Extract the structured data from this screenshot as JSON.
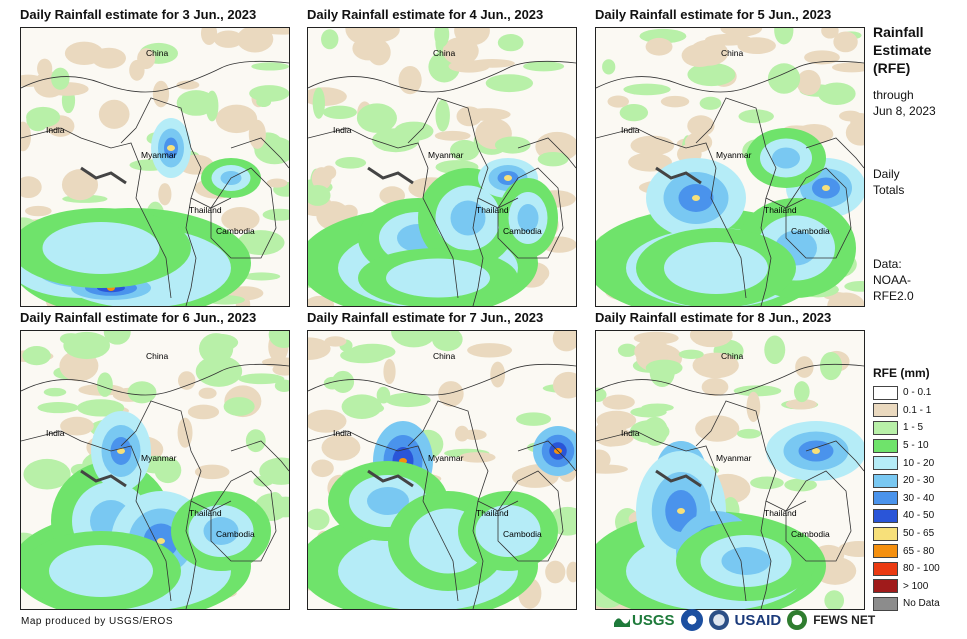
{
  "side": {
    "title_line1": "Rainfall",
    "title_line2": "Estimate",
    "title_line3": "(RFE)",
    "through": "through",
    "date": "Jun 8, 2023",
    "daily1": "Daily",
    "daily2": "Totals",
    "data1": "Data:",
    "data2": "NOAA-",
    "data3": "RFE2.0"
  },
  "panels": [
    {
      "title": "Daily Rainfall estimate for 3 Jun., 2023"
    },
    {
      "title": "Daily Rainfall estimate for 4 Jun., 2023"
    },
    {
      "title": "Daily Rainfall estimate for 5 Jun., 2023"
    },
    {
      "title": "Daily Rainfall estimate for 6 Jun., 2023"
    },
    {
      "title": "Daily Rainfall estimate for 7 Jun., 2023"
    },
    {
      "title": "Daily Rainfall estimate for 8 Jun., 2023"
    }
  ],
  "map_labels": {
    "china": "China",
    "india": "India",
    "myanmar": "Myanmar",
    "thailand": "Thailand",
    "cambodia": "Cambodia"
  },
  "legend": {
    "title": "RFE (mm)",
    "items": [
      {
        "label": "0 - 0.1",
        "color": "#ffffff"
      },
      {
        "label": "0.1 - 1",
        "color": "#ead9bf"
      },
      {
        "label": "1 - 5",
        "color": "#b8f0a8"
      },
      {
        "label": "5 - 10",
        "color": "#6fe36b"
      },
      {
        "label": "10 - 20",
        "color": "#b5ecf7"
      },
      {
        "label": "20 - 30",
        "color": "#79c8f2"
      },
      {
        "label": "30 - 40",
        "color": "#4a93ec"
      },
      {
        "label": "40 - 50",
        "color": "#2a55d8"
      },
      {
        "label": "50 - 65",
        "color": "#f7e07a"
      },
      {
        "label": "65 - 80",
        "color": "#f5900f"
      },
      {
        "label": "80 - 100",
        "color": "#ea3a12"
      },
      {
        "label": "> 100",
        "color": "#a01b1b"
      },
      {
        "label": "No Data",
        "color": "#8c8c8c"
      }
    ]
  },
  "credit": "Map produced by USGS/EROS",
  "logos": {
    "usgs": "USGS",
    "usaid": "USAID",
    "fewsnet": "FEWS NET"
  }
}
